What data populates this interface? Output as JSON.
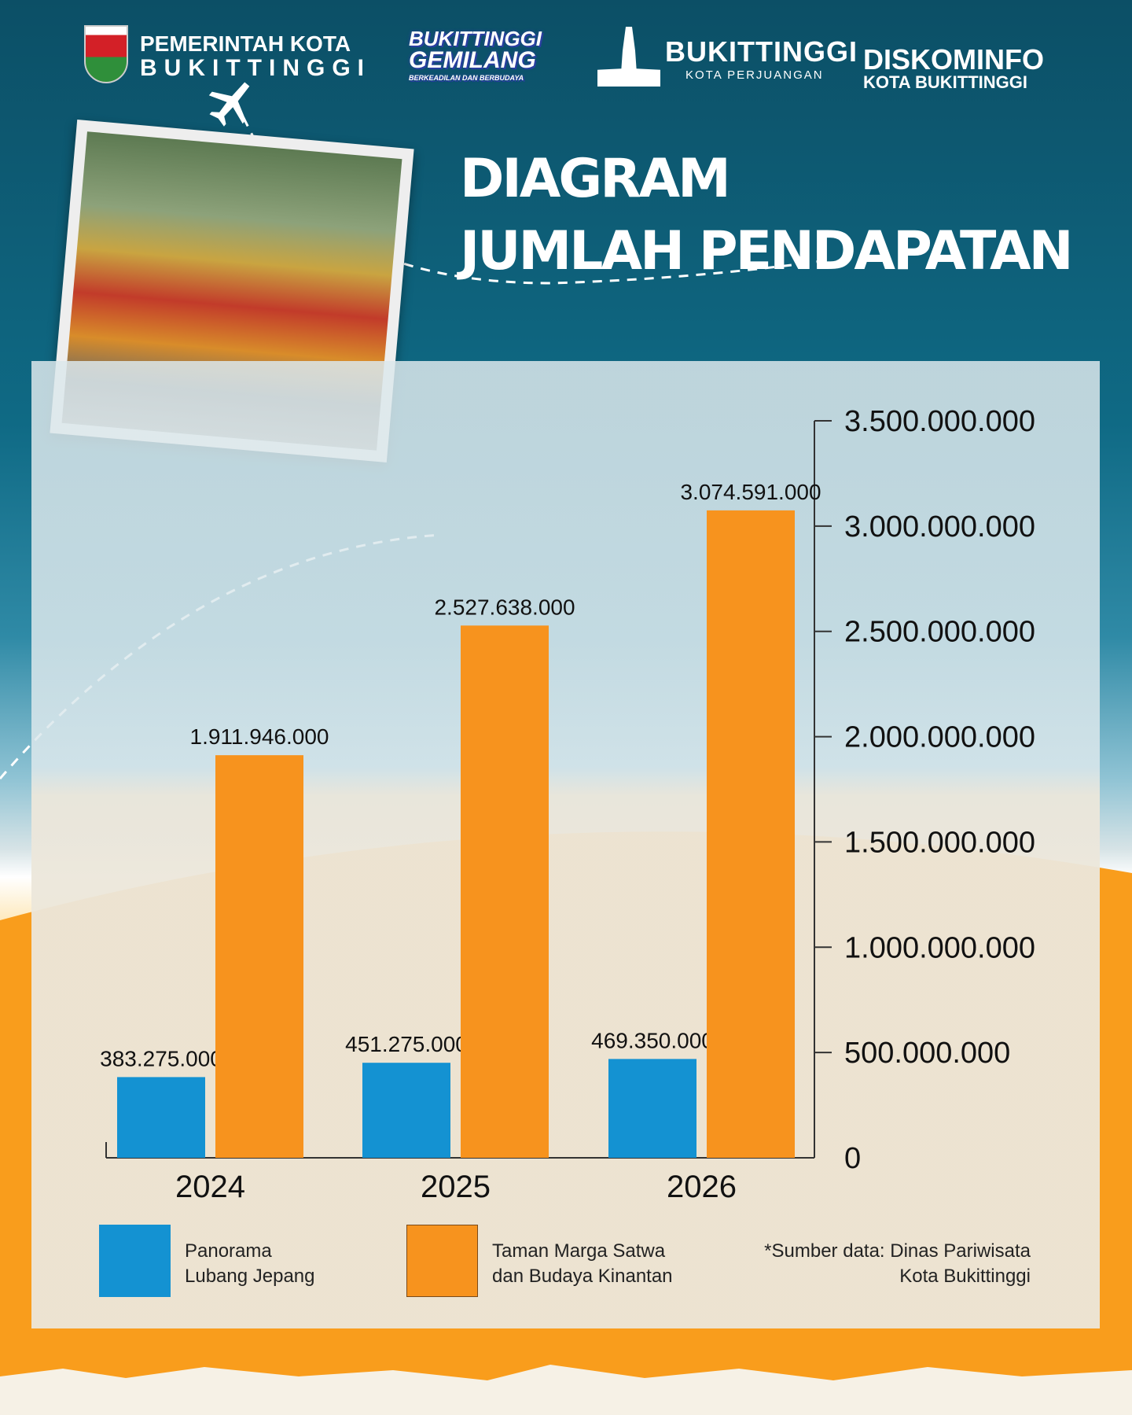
{
  "header": {
    "logos": [
      {
        "line1": "PEMERINTAH KOTA",
        "line2": "BUKITTINGGI"
      },
      {
        "line1": "BUKITTINGGI",
        "line2": "GEMILANG",
        "line3": "BERKEADILAN DAN BERBUDAYA"
      },
      {
        "line1": "BUKITTINGGI",
        "line2": "KOTA PERJUANGAN"
      },
      {
        "line1": "DISKOMINFO",
        "line2": "KOTA BUKITTINGGI"
      }
    ]
  },
  "title": {
    "line1": "DIAGRAM",
    "line2": "JUMLAH PENDAPATAN"
  },
  "chart_data": {
    "type": "bar",
    "categories": [
      "2024",
      "2025",
      "2026"
    ],
    "series": [
      {
        "name": "Panorama Lubang Jepang",
        "color": "#1492d2",
        "values": [
          383275000,
          451275000,
          469350000
        ],
        "labels": [
          "383.275.000",
          "451.275.000",
          "469.350.000"
        ]
      },
      {
        "name": "Taman Marga Satwa dan Budaya Kinantan",
        "color": "#f7931e",
        "values": [
          1911946000,
          2527638000,
          3074591000
        ],
        "labels": [
          "1.911.946.000",
          "2.527.638.000",
          "3.074.591.000"
        ]
      }
    ],
    "ylim": [
      0,
      3500000000
    ],
    "yticks": [
      "0",
      "500.000.000",
      "1.000.000.000",
      "1.500.000.000",
      "2.000.000.000",
      "2.500.000.000",
      "3.000.000.000",
      "3.500.000.000"
    ],
    "yaxis_side": "right",
    "grid": false,
    "legend_placement": "bottom"
  },
  "legend": {
    "s1_line1": "Panorama",
    "s1_line2": "Lubang Jepang",
    "s2_line1": "Taman Marga Satwa",
    "s2_line2": "dan Budaya Kinantan"
  },
  "source": {
    "line1": "*Sumber data: Dinas Pariwisata",
    "line2": "Kota Bukittinggi"
  }
}
